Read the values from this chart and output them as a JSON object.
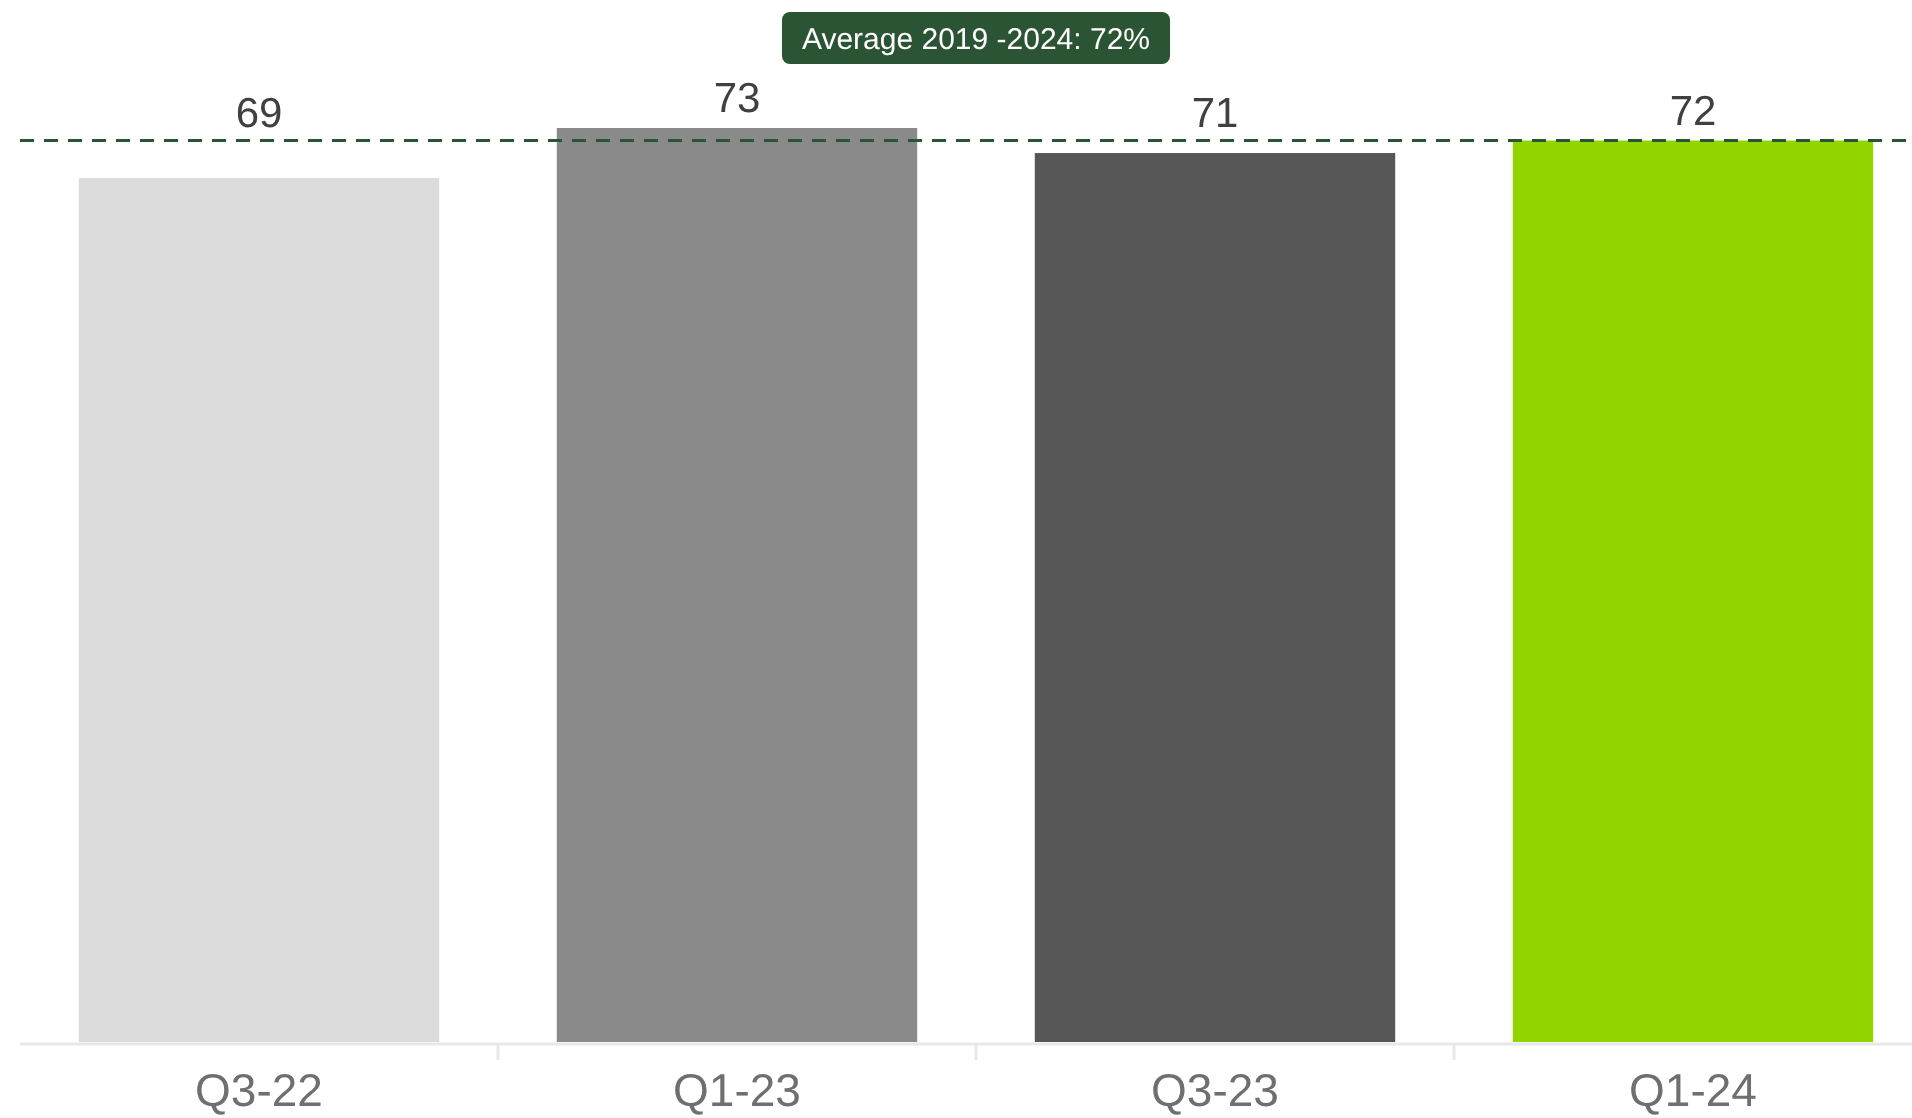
{
  "chart_data": {
    "type": "bar",
    "categories": [
      "Q3-22",
      "Q1-23",
      "Q3-23",
      "Q1-24"
    ],
    "values": [
      69,
      73,
      71,
      72
    ],
    "colors": [
      "#dcdcdc",
      "#8a8a8a",
      "#575757",
      "#92d400"
    ],
    "data_labels": true,
    "ref_lines": [
      {
        "axis": "y",
        "value": 72,
        "label": "Average 2019 -2024: 72%",
        "color": "#2b5434",
        "line_style": "dashed"
      }
    ]
  }
}
